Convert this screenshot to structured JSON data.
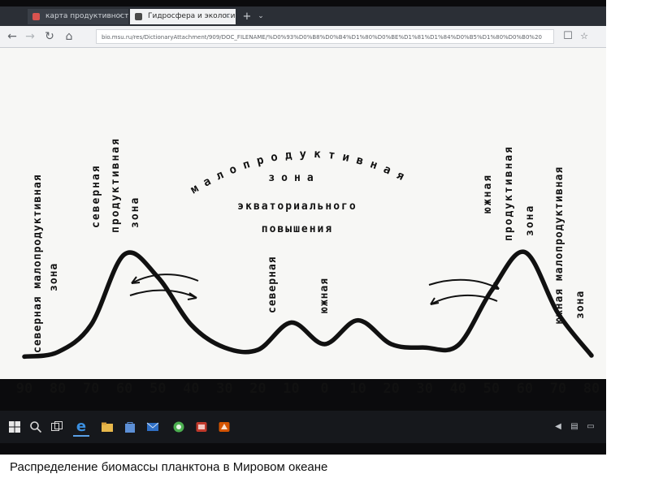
{
  "browser": {
    "tabs": [
      {
        "label": "карта продуктивности мир"
      },
      {
        "label": "Гидросфера и экологи"
      }
    ],
    "url": "bio.msu.ru/res/DictionaryAttachment/909/DOC_FILENAME/%D0%93%D0%B8%D0%B4%D1%80%D0%BE%D1%81%D1%84%D0%B5%D1%80%D0%B0%20"
  },
  "chart_data": {
    "type": "line",
    "title": "",
    "x_ticks": [
      "90",
      "80",
      "70",
      "60",
      "50",
      "40",
      "30",
      "20",
      "10",
      "0",
      "10",
      "20",
      "30",
      "40",
      "50",
      "60",
      "70",
      "80"
    ],
    "series": [
      {
        "values": [
          0.04,
          0.08,
          0.32,
          0.94,
          0.74,
          0.32,
          0.12,
          0.1,
          0.34,
          0.15,
          0.36,
          0.15,
          0.12,
          0.14,
          0.62,
          0.96,
          0.42,
          0.05
        ]
      }
    ],
    "annotations": {
      "north_low": [
        "северная малопродуктивная",
        "зона"
      ],
      "north_high": [
        "северная",
        "продуктивная",
        "зона"
      ],
      "arc_top": "малопродуктивная",
      "center_lines": [
        "зона",
        "экваториального",
        "повышения"
      ],
      "north_eq": "северная",
      "south_eq": "южная",
      "south_high": [
        "южная",
        "продуктивная",
        "зона"
      ],
      "south_low": [
        "южная малопродуктивная",
        "зона"
      ]
    },
    "colors": {
      "line": "#111111",
      "paper": "#f7f7f5"
    }
  },
  "caption": "Распределение биомассы планктона в Мировом океане"
}
